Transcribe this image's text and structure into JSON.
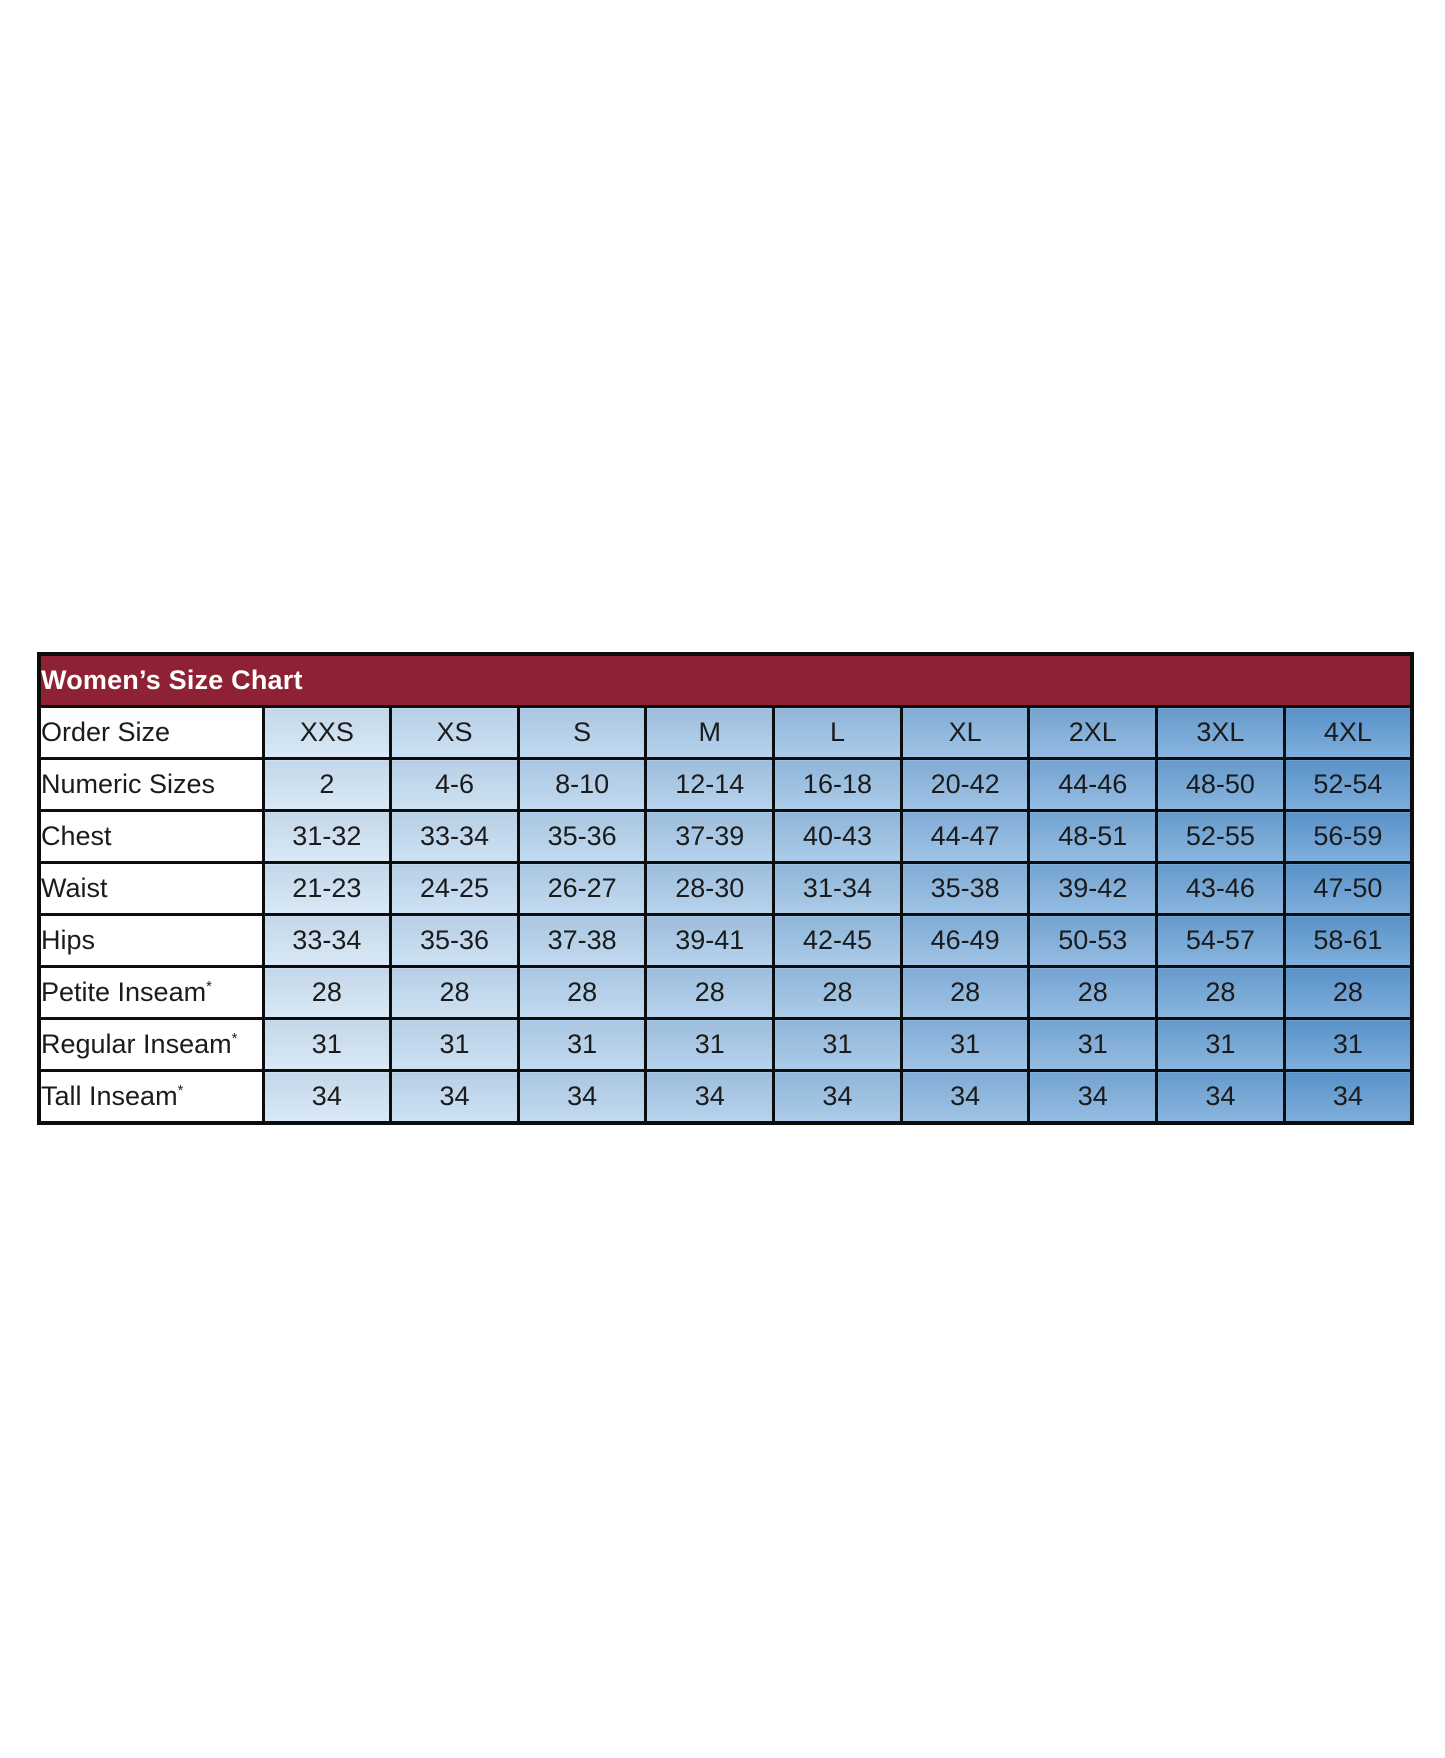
{
  "page": {
    "background": "#ffffff"
  },
  "colors": {
    "header_bg": "#8e2133",
    "header_text": "#ffffff",
    "grad_start": "#cfe3f5",
    "grad_end": "#5e9ad3",
    "border": "#0d0d0d",
    "text": "#1b1b1b",
    "label_bg": "#ffffff"
  },
  "chart_data": {
    "type": "table",
    "title": "Women’s Size Chart",
    "columns": [
      "XXS",
      "XS",
      "S",
      "M",
      "L",
      "XL",
      "2XL",
      "3XL",
      "4XL"
    ],
    "rows": [
      {
        "label": "Order Size",
        "sup": "",
        "values": [
          "XXS",
          "XS",
          "S",
          "M",
          "L",
          "XL",
          "2XL",
          "3XL",
          "4XL"
        ]
      },
      {
        "label": "Numeric Sizes",
        "sup": "",
        "values": [
          "2",
          "4-6",
          "8-10",
          "12-14",
          "16-18",
          "20-42",
          "44-46",
          "48-50",
          "52-54"
        ]
      },
      {
        "label": "Chest",
        "sup": "",
        "values": [
          "31-32",
          "33-34",
          "35-36",
          "37-39",
          "40-43",
          "44-47",
          "48-51",
          "52-55",
          "56-59"
        ]
      },
      {
        "label": "Waist",
        "sup": "",
        "values": [
          "21-23",
          "24-25",
          "26-27",
          "28-30",
          "31-34",
          "35-38",
          "39-42",
          "43-46",
          "47-50"
        ]
      },
      {
        "label": "Hips",
        "sup": "",
        "values": [
          "33-34",
          "35-36",
          "37-38",
          "39-41",
          "42-45",
          "46-49",
          "50-53",
          "54-57",
          "58-61"
        ]
      },
      {
        "label": "Petite Inseam",
        "sup": "*",
        "values": [
          "28",
          "28",
          "28",
          "28",
          "28",
          "28",
          "28",
          "28",
          "28"
        ]
      },
      {
        "label": "Regular Inseam",
        "sup": "*",
        "values": [
          "31",
          "31",
          "31",
          "31",
          "31",
          "31",
          "31",
          "31",
          "31"
        ]
      },
      {
        "label": "Tall Inseam",
        "sup": "*",
        "values": [
          "34",
          "34",
          "34",
          "34",
          "34",
          "34",
          "34",
          "34",
          "34"
        ]
      }
    ]
  }
}
